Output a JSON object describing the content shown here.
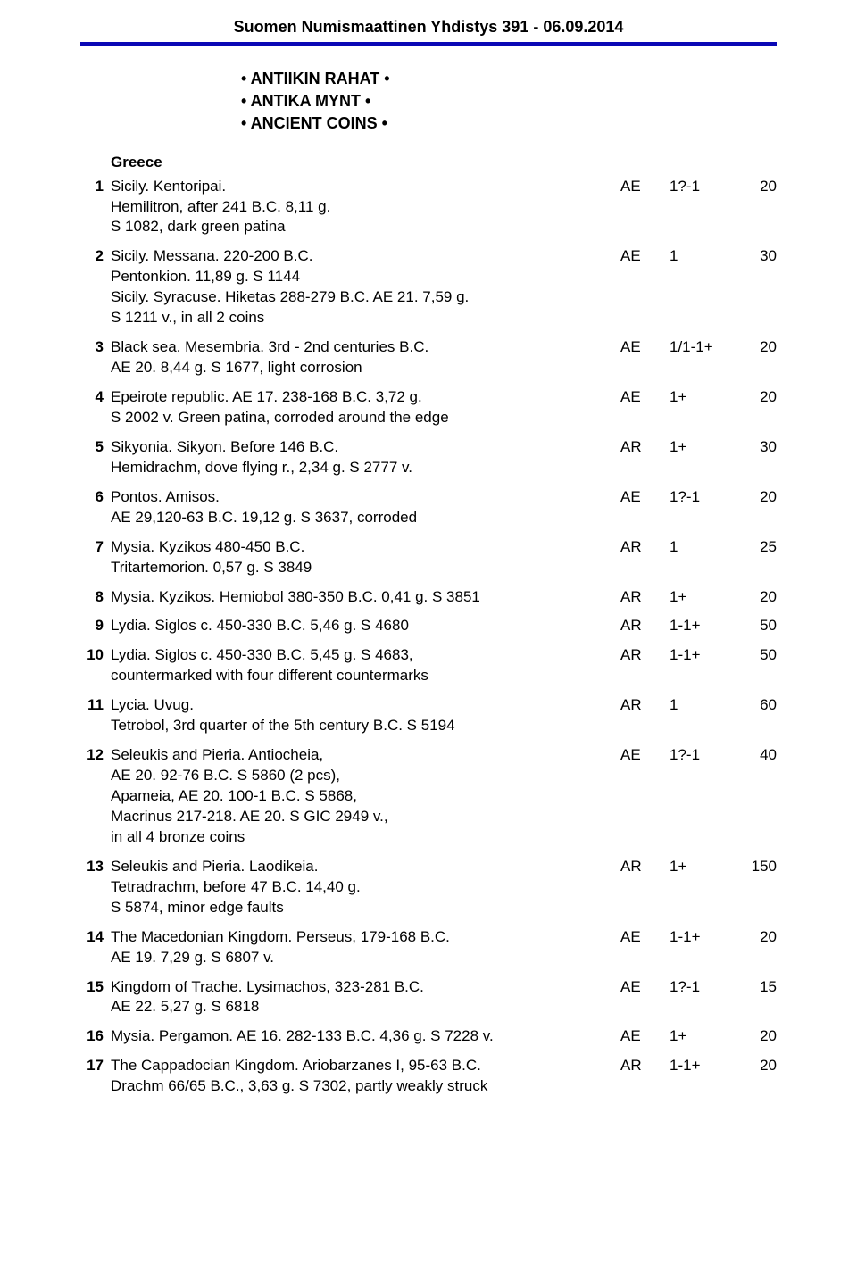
{
  "header": {
    "title": "Suomen Numismaattinen Yhdistys 391 - 06.09.2014"
  },
  "section": {
    "lines": [
      "ANTIIKIN RAHAT",
      "ANTIKA MYNT",
      "ANCIENT COINS"
    ]
  },
  "subheading": "Greece",
  "lots": [
    {
      "num": "1",
      "desc": "Sicily. Kentoripai.\nHemilitron, after 241 B.C. 8,11 g.\nS 1082, dark green patina",
      "metal": "AE",
      "grade": "1?-1",
      "price": "20"
    },
    {
      "num": "2",
      "desc": "Sicily. Messana. 220-200 B.C.\nPentonkion. 11,89 g. S 1144\nSicily. Syracuse. Hiketas 288-279 B.C. AE 21. 7,59 g.\nS 1211 v., in all 2 coins",
      "metal": "AE",
      "grade": "1",
      "price": "30"
    },
    {
      "num": "3",
      "desc": "Black sea. Mesembria. 3rd - 2nd centuries B.C.\nAE 20. 8,44 g. S 1677, light corrosion",
      "metal": "AE",
      "grade": "1/1-1+",
      "price": "20"
    },
    {
      "num": "4",
      "desc": "Epeirote republic. AE 17. 238-168 B.C. 3,72 g.\nS 2002 v. Green patina, corroded around the edge",
      "metal": "AE",
      "grade": "1+",
      "price": "20"
    },
    {
      "num": "5",
      "desc": "Sikyonia. Sikyon. Before 146 B.C.\nHemidrachm, dove flying r., 2,34 g. S 2777 v.",
      "metal": "AR",
      "grade": "1+",
      "price": "30"
    },
    {
      "num": "6",
      "desc": "Pontos. Amisos.\nAE 29,120-63 B.C. 19,12 g. S 3637, corroded",
      "metal": "AE",
      "grade": "1?-1",
      "price": "20"
    },
    {
      "num": "7",
      "desc": "Mysia. Kyzikos 480-450 B.C.\nTritartemorion. 0,57 g. S 3849",
      "metal": "AR",
      "grade": "1",
      "price": "25"
    },
    {
      "num": "8",
      "desc": "Mysia. Kyzikos. Hemiobol 380-350 B.C. 0,41 g. S 3851",
      "metal": "AR",
      "grade": "1+",
      "price": "20"
    },
    {
      "num": "9",
      "desc": "Lydia. Siglos c. 450-330 B.C. 5,46 g. S 4680",
      "metal": "AR",
      "grade": "1-1+",
      "price": "50"
    },
    {
      "num": "10",
      "desc": "Lydia. Siglos c. 450-330 B.C. 5,45 g. S 4683,\ncountermarked with four different countermarks",
      "metal": "AR",
      "grade": "1-1+",
      "price": "50"
    },
    {
      "num": "11",
      "desc": "Lycia. Uvug.\nTetrobol, 3rd quarter of the 5th century B.C. S 5194",
      "metal": "AR",
      "grade": "1",
      "price": "60"
    },
    {
      "num": "12",
      "desc": "Seleukis and Pieria. Antiocheia,\nAE 20. 92-76 B.C. S 5860 (2 pcs),\nApameia, AE 20. 100-1 B.C. S 5868,\nMacrinus 217-218. AE 20. S GIC 2949 v.,\nin all 4 bronze coins",
      "metal": "AE",
      "grade": "1?-1",
      "price": "40"
    },
    {
      "num": "13",
      "desc": "Seleukis and Pieria. Laodikeia.\nTetradrachm, before 47 B.C. 14,40 g.\nS 5874, minor edge faults",
      "metal": "AR",
      "grade": "1+",
      "price": "150"
    },
    {
      "num": "14",
      "desc": "The Macedonian Kingdom. Perseus, 179-168 B.C.\nAE 19. 7,29 g. S 6807 v.",
      "metal": "AE",
      "grade": "1-1+",
      "price": "20"
    },
    {
      "num": "15",
      "desc": "Kingdom of Trache. Lysimachos, 323-281 B.C.\nAE 22. 5,27 g. S 6818",
      "metal": "AE",
      "grade": "1?-1",
      "price": "15"
    },
    {
      "num": "16",
      "desc": "Mysia. Pergamon. AE 16. 282-133 B.C. 4,36 g. S 7228 v.",
      "metal": "AE",
      "grade": "1+",
      "price": "20"
    },
    {
      "num": "17",
      "desc": "The Cappadocian Kingdom. Ariobarzanes I, 95-63 B.C.\nDrachm 66/65 B.C., 3,63 g. S 7302, partly weakly struck",
      "metal": "AR",
      "grade": "1-1+",
      "price": "20"
    }
  ],
  "colors": {
    "rule": "#0a08b5",
    "text": "#000000",
    "background": "#ffffff"
  },
  "typography": {
    "title_fontsize": 18,
    "heading_fontsize": 18,
    "body_fontsize": 17,
    "font_family": "Arial"
  }
}
